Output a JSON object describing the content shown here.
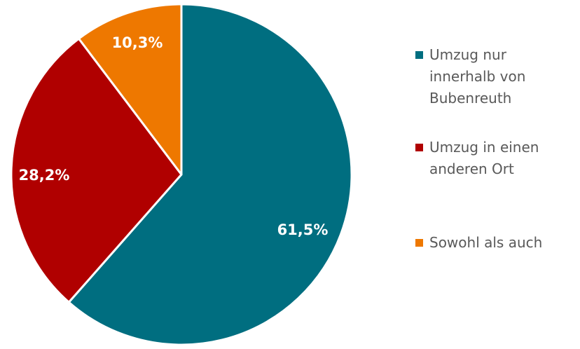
{
  "chart_data": {
    "type": "pie",
    "title": "",
    "slices": [
      {
        "label": "Umzug nur\ninnerhalb von\nBubenreuth",
        "value": 61.5,
        "display": "61,5%",
        "color": "#006E80"
      },
      {
        "label": "Umzug in einen\nanderen Ort",
        "value": 28.2,
        "display": "28,2%",
        "color": "#B00000"
      },
      {
        "label": "Sowohl als auch",
        "value": 10.3,
        "display": "10,3%",
        "color": "#EE7800"
      }
    ],
    "start_angle": "12 o'clock",
    "direction": "clockwise",
    "legend_position": "right"
  }
}
